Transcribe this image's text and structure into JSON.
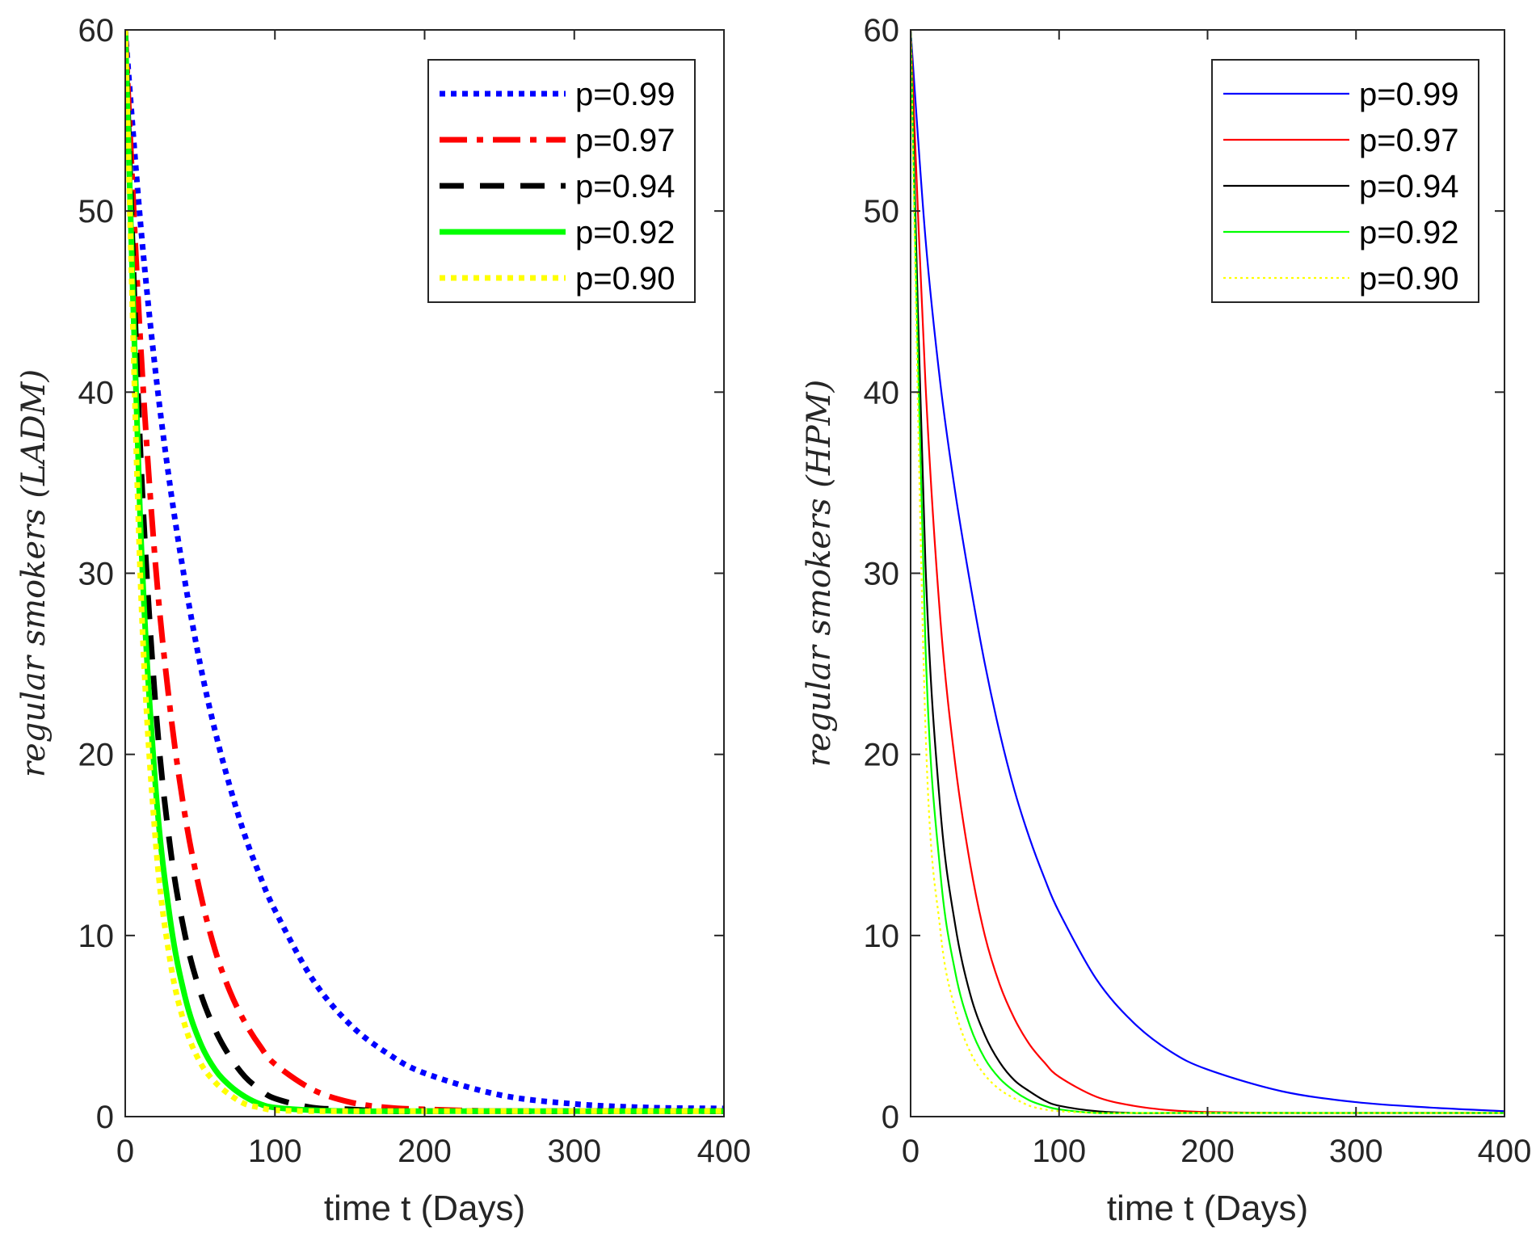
{
  "chart_data": [
    {
      "type": "line",
      "title": "",
      "xlabel": "time t (Days)",
      "ylabel": "regular smokers (LADM)",
      "xlim": [
        0,
        400
      ],
      "ylim": [
        0,
        60
      ],
      "xticks": [
        0,
        100,
        200,
        300,
        400
      ],
      "yticks": [
        0,
        10,
        20,
        30,
        40,
        50,
        60
      ],
      "grid": false,
      "legend_position": "top-right",
      "x": [
        0,
        10,
        20,
        30,
        40,
        50,
        60,
        70,
        80,
        90,
        100,
        125,
        150,
        175,
        200,
        250,
        300,
        350,
        400
      ],
      "series": [
        {
          "name": "p=0.99",
          "color": "#0000ff",
          "style": "dotted-thick",
          "values": [
            60,
            49.5,
            41.3,
            34.8,
            29.5,
            25.0,
            21.3,
            18.2,
            15.5,
            13.3,
            11.4,
            7.6,
            5.1,
            3.5,
            2.4,
            1.2,
            0.7,
            0.5,
            0.45
          ]
        },
        {
          "name": "p=0.97",
          "color": "#ff0000",
          "style": "dash-dot-thick",
          "values": [
            60,
            43.0,
            30.7,
            22.5,
            16.6,
            12.4,
            9.2,
            6.9,
            5.2,
            3.9,
            2.9,
            1.5,
            0.8,
            0.5,
            0.4,
            0.3,
            0.3,
            0.3,
            0.3
          ]
        },
        {
          "name": "p=0.94",
          "color": "#000000",
          "style": "dashed-thick",
          "values": [
            60,
            37.0,
            23.0,
            14.9,
            10.0,
            6.9,
            4.8,
            3.3,
            2.2,
            1.5,
            1.0,
            0.5,
            0.4,
            0.3,
            0.3,
            0.3,
            0.3,
            0.3,
            0.3
          ]
        },
        {
          "name": "p=0.92",
          "color": "#00ff00",
          "style": "solid-thick",
          "values": [
            60,
            33.0,
            18.5,
            10.9,
            6.6,
            4.1,
            2.6,
            1.7,
            1.1,
            0.7,
            0.5,
            0.35,
            0.3,
            0.3,
            0.3,
            0.3,
            0.3,
            0.3,
            0.3
          ]
        },
        {
          "name": "p=0.90",
          "color": "#ffff00",
          "style": "dotted-thick",
          "values": [
            60,
            30.0,
            15.5,
            8.6,
            5.0,
            3.0,
            1.9,
            1.2,
            0.7,
            0.5,
            0.35,
            0.3,
            0.3,
            0.3,
            0.3,
            0.3,
            0.3,
            0.3,
            0.3
          ]
        }
      ]
    },
    {
      "type": "line",
      "title": "",
      "xlabel": "time t (Days)",
      "ylabel": "regular smokers (HPM)",
      "xlim": [
        0,
        400
      ],
      "ylim": [
        0,
        60
      ],
      "xticks": [
        0,
        100,
        200,
        300,
        400
      ],
      "yticks": [
        0,
        10,
        20,
        30,
        40,
        50,
        60
      ],
      "grid": false,
      "legend_position": "top-right",
      "x": [
        0,
        10,
        20,
        30,
        40,
        50,
        60,
        70,
        80,
        90,
        100,
        125,
        150,
        175,
        200,
        250,
        300,
        350,
        400
      ],
      "series": [
        {
          "name": "p=0.99",
          "color": "#0000ff",
          "style": "solid-thin",
          "values": [
            60,
            48.5,
            40.5,
            34.5,
            29.5,
            25.0,
            21.2,
            18.0,
            15.4,
            13.2,
            11.3,
            7.6,
            5.2,
            3.6,
            2.6,
            1.4,
            0.8,
            0.5,
            0.3
          ]
        },
        {
          "name": "p=0.97",
          "color": "#ff0000",
          "style": "solid-thin",
          "values": [
            60,
            40.5,
            27.5,
            19.5,
            14.0,
            10.0,
            7.3,
            5.4,
            4.0,
            3.0,
            2.2,
            1.1,
            0.6,
            0.35,
            0.25,
            0.2,
            0.2,
            0.2,
            0.2
          ]
        },
        {
          "name": "p=0.94",
          "color": "#000000",
          "style": "solid-thin",
          "values": [
            60,
            30.5,
            17.0,
            10.6,
            6.8,
            4.5,
            3.0,
            2.0,
            1.4,
            0.9,
            0.6,
            0.3,
            0.2,
            0.2,
            0.2,
            0.2,
            0.2,
            0.2,
            0.2
          ]
        },
        {
          "name": "p=0.92",
          "color": "#00ff00",
          "style": "solid-thin",
          "values": [
            60,
            26.0,
            13.5,
            8.0,
            5.0,
            3.2,
            2.1,
            1.4,
            0.9,
            0.6,
            0.4,
            0.2,
            0.2,
            0.2,
            0.2,
            0.2,
            0.2,
            0.2,
            0.2
          ]
        },
        {
          "name": "p=0.90",
          "color": "#ffff00",
          "style": "dotted-thin",
          "values": [
            60,
            21.5,
            10.3,
            5.9,
            3.6,
            2.3,
            1.5,
            1.0,
            0.6,
            0.4,
            0.3,
            0.2,
            0.2,
            0.2,
            0.2,
            0.2,
            0.2,
            0.2,
            0.2
          ]
        }
      ]
    }
  ]
}
